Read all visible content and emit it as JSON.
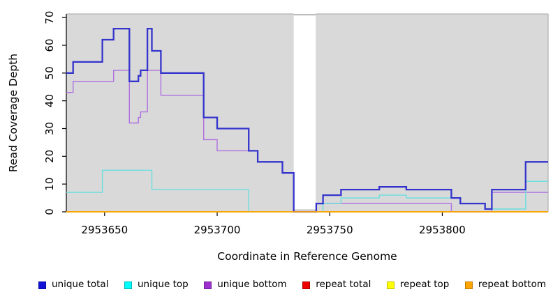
{
  "chart_data": {
    "type": "line",
    "step_style": true,
    "title": "",
    "xlabel": "Coordinate in Reference Genome",
    "ylabel": "Read Coverage Depth",
    "xlim": [
      2953633,
      2953847
    ],
    "ylim": [
      0,
      71.3
    ],
    "x_ticks": [
      2953650,
      2953700,
      2953750,
      2953800
    ],
    "y_ticks": [
      0,
      10,
      20,
      30,
      40,
      50,
      60,
      70
    ],
    "grid": false,
    "plot_bg": "#d9d9d9",
    "border_color": "#b3b3b3",
    "axis_color": "#000000",
    "gap_region": {
      "from": 2953734,
      "to": 2953743.8,
      "cap_color": "#999999"
    },
    "series": [
      {
        "name": "repeat total",
        "color": "#e00000",
        "width": 1.4,
        "steps": [
          [
            2953633,
            0
          ]
        ]
      },
      {
        "name": "repeat top",
        "color": "#f5f500",
        "width": 1.4,
        "steps": [
          [
            2953633,
            0
          ]
        ]
      },
      {
        "name": "unique bottom",
        "color": "#ae6fe0",
        "width": 1.4,
        "steps": [
          [
            2953633,
            43
          ],
          [
            2953636,
            47
          ],
          [
            2953654,
            51
          ],
          [
            2953661,
            32
          ],
          [
            2953665,
            34
          ],
          [
            2953666,
            36
          ],
          [
            2953669,
            51
          ],
          [
            2953675,
            42
          ],
          [
            2953694,
            26
          ],
          [
            2953700,
            22
          ],
          [
            2953718,
            18
          ],
          [
            2953729,
            14
          ],
          [
            2953734,
            0
          ],
          [
            2953744,
            3
          ],
          [
            2953804,
            0
          ],
          [
            2953822,
            7
          ]
        ]
      },
      {
        "name": "unique top",
        "color": "#69dede",
        "width": 1.4,
        "steps": [
          [
            2953633,
            7
          ],
          [
            2953649,
            15
          ],
          [
            2953671,
            8
          ],
          [
            2953714,
            0
          ],
          [
            2953747,
            3
          ],
          [
            2953755,
            5
          ],
          [
            2953772,
            6
          ],
          [
            2953784,
            5
          ],
          [
            2953808,
            3
          ],
          [
            2953819,
            1
          ],
          [
            2953837,
            11
          ]
        ]
      },
      {
        "name": "unique total",
        "color": "#3434cd",
        "width": 2.3,
        "steps": [
          [
            2953633,
            50
          ],
          [
            2953636,
            54
          ],
          [
            2953649,
            62
          ],
          [
            2953654,
            66
          ],
          [
            2953661,
            47
          ],
          [
            2953665,
            49
          ],
          [
            2953666,
            51
          ],
          [
            2953669,
            66
          ],
          [
            2953671,
            58
          ],
          [
            2953675,
            50
          ],
          [
            2953694,
            34
          ],
          [
            2953700,
            30
          ],
          [
            2953714,
            22
          ],
          [
            2953718,
            18
          ],
          [
            2953729,
            14
          ],
          [
            2953734,
            0
          ],
          [
            2953744,
            3
          ],
          [
            2953747,
            6
          ],
          [
            2953755,
            8
          ],
          [
            2953772,
            9
          ],
          [
            2953784,
            8
          ],
          [
            2953804,
            5
          ],
          [
            2953808,
            3
          ],
          [
            2953819,
            1
          ],
          [
            2953822,
            8
          ],
          [
            2953837,
            18
          ]
        ]
      },
      {
        "name": "repeat bottom",
        "color": "#ffa500",
        "width": 1.7,
        "steps": [
          [
            2953633,
            0
          ]
        ]
      }
    ],
    "legend": {
      "position": "bottom",
      "items": [
        {
          "label": "unique total",
          "fill": "#1212d6",
          "border": "#0a0aa6"
        },
        {
          "label": "unique top",
          "fill": "#00ffff",
          "border": "#00b4b4"
        },
        {
          "label": "unique bottom",
          "fill": "#9b30cc",
          "border": "#71209a"
        },
        {
          "label": "repeat total",
          "fill": "#ee0000",
          "border": "#a80000"
        },
        {
          "label": "repeat top",
          "fill": "#ffff00",
          "border": "#bcbc00"
        },
        {
          "label": "repeat bottom",
          "fill": "#ffa500",
          "border": "#bc7a00"
        }
      ]
    }
  }
}
